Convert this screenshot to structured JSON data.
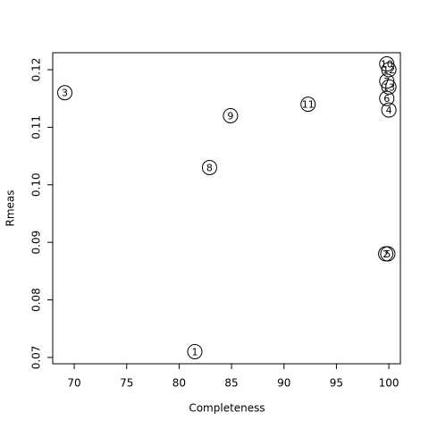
{
  "chart_data": {
    "type": "scatter",
    "x_label": "Completeness",
    "y_label": "Rmeas",
    "xlim": [
      67.95,
      101.1
    ],
    "ylim": [
      0.0689,
      0.12295
    ],
    "xticks": [
      70,
      75,
      80,
      85,
      90,
      95,
      100
    ],
    "yticks": [
      0.07,
      0.08,
      0.09,
      {
        "value": 0.1,
        "label": "0.10"
      },
      0.11,
      0.12
    ],
    "series": [
      {
        "color": "#000000",
        "labels": [
          "1",
          "2",
          "3",
          "4",
          "5",
          "6",
          "7",
          "8",
          "9",
          "10",
          "11",
          "12",
          "13"
        ],
        "x": [
          81.5,
          99.7,
          69.1,
          100,
          99.9,
          99.8,
          99.8,
          82.9,
          84.9,
          99.8,
          92.3,
          100,
          100
        ],
        "values": [
          0.071,
          0.088,
          0.116,
          0.113,
          0.088,
          0.115,
          0.118,
          0.103,
          0.112,
          0.121,
          0.114,
          0.12,
          0.117
        ]
      }
    ]
  }
}
